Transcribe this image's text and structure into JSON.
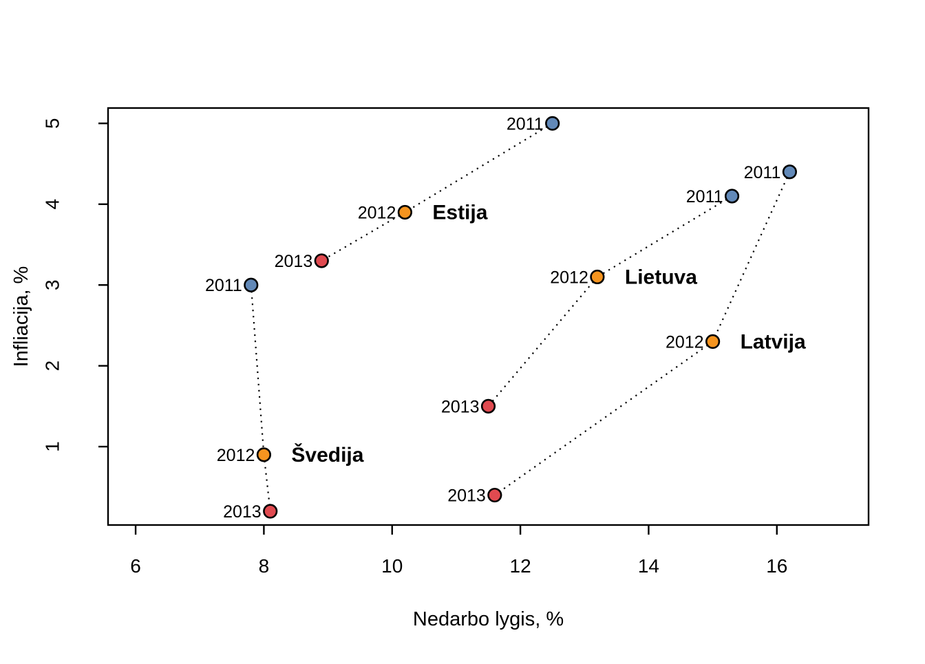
{
  "chart_data": {
    "type": "scatter",
    "title": "",
    "xlabel": "Nedarbo lygis, %",
    "ylabel": "Infliacija, %",
    "xlim": [
      5.57,
      17.43
    ],
    "ylim": [
      0.03,
      5.19
    ],
    "x_ticks": [
      6,
      8,
      10,
      12,
      14,
      16
    ],
    "y_ticks": [
      1,
      2,
      3,
      4,
      5
    ],
    "grid": false,
    "legend": "none",
    "connector_style": "dotted",
    "connector_color": "#000000",
    "year_styles": {
      "2011": {
        "fill": "#6289b8",
        "text": "#7da4cf"
      },
      "2012": {
        "fill": "#f5941f",
        "text": "#f7a54a"
      },
      "2013": {
        "fill": "#e04a50",
        "text": "#ee7e7e"
      }
    },
    "series": [
      {
        "name": "Estija",
        "label_at_year": "2012",
        "points": [
          {
            "year": "2011",
            "x": 12.5,
            "y": 5.0
          },
          {
            "year": "2012",
            "x": 10.2,
            "y": 3.9
          },
          {
            "year": "2013",
            "x": 8.9,
            "y": 3.3
          }
        ]
      },
      {
        "name": "Lietuva",
        "label_at_year": "2012",
        "points": [
          {
            "year": "2011",
            "x": 15.3,
            "y": 4.1
          },
          {
            "year": "2012",
            "x": 13.2,
            "y": 3.1
          },
          {
            "year": "2013",
            "x": 11.5,
            "y": 1.5
          }
        ]
      },
      {
        "name": "Latvija",
        "label_at_year": "2012",
        "points": [
          {
            "year": "2011",
            "x": 16.2,
            "y": 4.4
          },
          {
            "year": "2012",
            "x": 15.0,
            "y": 2.3
          },
          {
            "year": "2013",
            "x": 11.6,
            "y": 0.4
          }
        ]
      },
      {
        "name": "Švedija",
        "label_at_year": "2012",
        "points": [
          {
            "year": "2011",
            "x": 7.8,
            "y": 3.0
          },
          {
            "year": "2012",
            "x": 8.0,
            "y": 0.9
          },
          {
            "year": "2013",
            "x": 8.1,
            "y": 0.2
          }
        ]
      }
    ]
  }
}
